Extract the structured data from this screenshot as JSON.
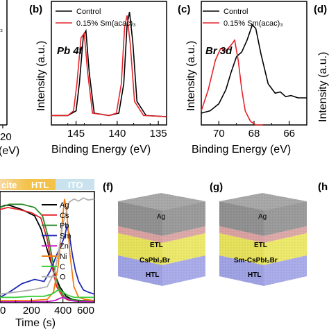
{
  "panels": {
    "a": {
      "letter": "",
      "x_tick_labels": [
        "20"
      ],
      "xlabel": "(eV)",
      "legend_fragment": "₃"
    },
    "b": {
      "letter": "(b)",
      "annotation": "Pb 4f",
      "ylabel": "Intensity (a.u.)",
      "xlabel": "Binding Energy (eV)",
      "legend": [
        "Control",
        "0.15% Sm(acac)₃"
      ],
      "x_ticks": [
        "145",
        "140",
        "135"
      ]
    },
    "c": {
      "letter": "(c)",
      "annotation": "Br 3d",
      "ylabel": "Intensity (a.u.)",
      "xlabel": "Binding Energy (eV)",
      "legend": [
        "Control",
        "0.15% Sm(acac)₃"
      ],
      "x_ticks": [
        "70",
        "68",
        "66"
      ]
    },
    "d": {
      "letter": "(d)",
      "ylabel": "Intensity (a.u.)"
    },
    "e": {
      "band_labels": [
        "cite",
        "HTL",
        "ITO"
      ],
      "legend": [
        "Ag",
        "Cs",
        "Pb",
        "Sm",
        "Zn",
        "Ni",
        "C",
        "O"
      ],
      "x_ticks": [
        "0",
        "200",
        "400",
        "600"
      ],
      "xlabel": "Time (s)"
    },
    "f": {
      "letter": "(f)",
      "layers": [
        "Ag",
        "ETL",
        "CsPbI₂Br",
        "HTL"
      ]
    },
    "g": {
      "letter": "(g)",
      "layers": [
        "Ag",
        "ETL",
        "Sm-CsPbI₂Br",
        "HTL"
      ]
    },
    "h": {
      "letter": "(h"
    }
  },
  "colors": {
    "control": "#000000",
    "sm": "#e3242b",
    "band_perovskite": "#f6bf28",
    "band_htl": "#f6bf28",
    "band_ito": "#c9e2ee",
    "series_ag": "#000000",
    "series_cs": "#e3242b",
    "series_pb": "#2a8a2a",
    "series_sm": "#1f2bb5",
    "series_zn": "#c418c4",
    "series_ni": "#f07f12",
    "series_c": "#33cc33",
    "series_o": "#b0b0b0",
    "layer_ag": "#9c9c9c",
    "layer_etl": "#d98a8a",
    "layer_perovskite": "#e6e05a",
    "layer_htl": "#9a9ee0"
  },
  "chart_data": [
    {
      "panel": "b",
      "type": "line",
      "xlabel": "Binding Energy (eV)",
      "ylabel": "Intensity (a.u.)",
      "xlim": [
        148,
        134
      ],
      "x_reversed": true,
      "series": [
        {
          "name": "Control",
          "color": "#000000",
          "x": [
            148,
            146,
            145,
            144.6,
            144.1,
            143.8,
            143.4,
            142.8,
            141,
            139.8,
            139.2,
            138.8,
            138.5,
            138.1,
            137.6,
            136.5,
            134
          ],
          "y": [
            0.08,
            0.08,
            0.12,
            0.35,
            0.76,
            0.8,
            0.45,
            0.1,
            0.08,
            0.1,
            0.35,
            0.85,
            0.96,
            0.7,
            0.2,
            0.08,
            0.07
          ]
        },
        {
          "name": "0.15% Sm(acac)₃",
          "color": "#e3242b",
          "x": [
            148,
            146,
            145.3,
            144.9,
            144.4,
            144.0,
            143.6,
            143.0,
            141,
            140.1,
            139.5,
            139.1,
            138.8,
            138.4,
            137.9,
            136.8,
            134
          ],
          "y": [
            0.08,
            0.08,
            0.12,
            0.35,
            0.74,
            0.78,
            0.45,
            0.1,
            0.08,
            0.1,
            0.35,
            0.83,
            0.93,
            0.68,
            0.2,
            0.08,
            0.07
          ]
        }
      ]
    },
    {
      "panel": "c",
      "type": "line",
      "xlabel": "Binding Energy (eV)",
      "ylabel": "Intensity (a.u.)",
      "xlim": [
        71,
        65
      ],
      "x_reversed": true,
      "series": [
        {
          "name": "Control",
          "color": "#000000",
          "x": [
            71,
            70.5,
            70,
            69.6,
            69.3,
            69.0,
            68.7,
            68.4,
            68.1,
            67.9,
            67.6,
            67.2,
            66.8,
            66.5,
            66.2,
            65.9,
            65.5,
            65
          ],
          "y": [
            0.1,
            0.12,
            0.18,
            0.3,
            0.45,
            0.58,
            0.62,
            0.72,
            0.85,
            0.82,
            0.6,
            0.35,
            0.27,
            0.28,
            0.24,
            0.25,
            0.23,
            0.23
          ]
        },
        {
          "name": "0.15% Sm(acac)₃",
          "color": "#e3242b",
          "x": [
            71,
            70.6,
            70.2,
            69.9,
            69.6,
            69.3,
            69.1,
            68.9,
            68.7,
            68.5,
            68.2,
            67.9,
            67.5
          ],
          "y": [
            0.12,
            0.3,
            0.55,
            0.65,
            0.63,
            0.68,
            0.72,
            0.55,
            0.3,
            0.12,
            0.03,
            0.0,
            0.0
          ]
        }
      ]
    },
    {
      "panel": "e",
      "type": "line",
      "xlabel": "Time (s)",
      "xlim": [
        0,
        600
      ],
      "x_ticks": [
        0,
        200,
        400,
        600
      ],
      "series": [
        {
          "name": "Ag",
          "color": "#000000",
          "x": [
            0,
            30,
            60,
            100,
            140,
            180,
            220,
            260,
            300,
            340,
            380,
            420,
            460,
            500,
            560,
            600
          ],
          "y": [
            0.9,
            0.92,
            0.92,
            0.9,
            0.88,
            0.85,
            0.82,
            0.7,
            0.5,
            0.3,
            0.15,
            0.06,
            0.03,
            0.02,
            0.02,
            0.02
          ]
        },
        {
          "name": "Cs",
          "color": "#e3242b",
          "x": [
            0,
            50,
            120,
            200,
            260,
            300,
            330,
            360,
            400,
            440,
            500,
            600
          ],
          "y": [
            0.88,
            0.9,
            0.88,
            0.85,
            0.8,
            0.6,
            0.35,
            0.15,
            0.05,
            0.02,
            0.02,
            0.02
          ]
        },
        {
          "name": "Pb",
          "color": "#2a8a2a",
          "x": [
            0,
            60,
            140,
            220,
            270,
            310,
            340,
            370,
            410,
            450,
            520,
            600
          ],
          "y": [
            0.9,
            0.93,
            0.93,
            0.9,
            0.82,
            0.6,
            0.35,
            0.15,
            0.05,
            0.03,
            0.02,
            0.02
          ]
        },
        {
          "name": "Sm",
          "color": "#1f2bb5",
          "x": [
            0,
            60,
            140,
            220,
            280,
            320,
            360,
            390,
            410,
            425,
            440,
            460,
            480,
            500,
            530,
            560,
            600
          ],
          "y": [
            0.05,
            0.1,
            0.18,
            0.22,
            0.2,
            0.3,
            0.45,
            0.55,
            0.62,
            0.72,
            0.65,
            0.45,
            0.3,
            0.2,
            0.12,
            0.1,
            0.08
          ]
        },
        {
          "name": "Zn",
          "color": "#c418c4",
          "x": [
            0,
            100,
            200,
            300,
            350,
            380,
            400,
            420,
            450,
            500,
            600
          ],
          "y": [
            0.01,
            0.01,
            0.01,
            0.01,
            0.02,
            0.04,
            0.05,
            0.04,
            0.02,
            0.01,
            0.01
          ]
        },
        {
          "name": "Ni",
          "color": "#f07f12",
          "x": [
            0,
            200,
            300,
            340,
            370,
            395,
            410,
            425,
            445,
            470,
            500,
            540,
            600
          ],
          "y": [
            0.02,
            0.02,
            0.03,
            0.1,
            0.35,
            0.75,
            0.98,
            0.85,
            0.45,
            0.15,
            0.05,
            0.03,
            0.02
          ]
        },
        {
          "name": "C",
          "color": "#33cc33",
          "x": [
            0,
            100,
            200,
            280,
            330,
            370,
            400,
            430,
            470,
            520,
            600
          ],
          "y": [
            0.05,
            0.05,
            0.06,
            0.06,
            0.08,
            0.12,
            0.1,
            0.07,
            0.05,
            0.05,
            0.05
          ]
        },
        {
          "name": "O",
          "color": "#b0b0b0",
          "x": [
            0,
            100,
            200,
            300,
            350,
            380,
            400,
            420,
            440,
            470,
            500,
            530,
            560,
            600
          ],
          "y": [
            0.08,
            0.1,
            0.12,
            0.15,
            0.3,
            0.55,
            0.75,
            0.85,
            0.95,
            0.98,
            0.96,
            0.99,
            0.97,
            0.98
          ]
        }
      ]
    }
  ]
}
